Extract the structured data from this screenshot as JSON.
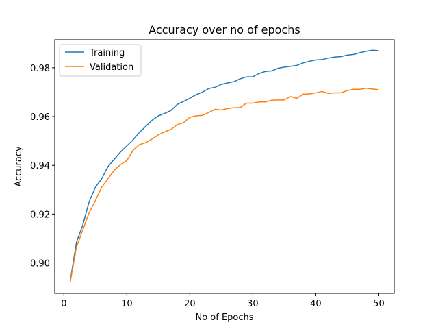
{
  "chart_data": {
    "type": "line",
    "title": "Accuracy over no of epochs",
    "xlabel": "No of Epochs",
    "ylabel": "Accuracy",
    "xlim": [
      -1.45,
      52.45
    ],
    "ylim": [
      0.8875,
      0.9915
    ],
    "xticks": [
      0,
      10,
      20,
      30,
      40,
      50
    ],
    "yticks": [
      0.9,
      0.92,
      0.94,
      0.96,
      0.98
    ],
    "ytick_labels": [
      "0.90",
      "0.92",
      "0.94",
      "0.96",
      "0.98"
    ],
    "grid": false,
    "legend_position": "top-left",
    "x": [
      1,
      2,
      3,
      4,
      5,
      6,
      7,
      8,
      9,
      10,
      11,
      12,
      13,
      14,
      15,
      16,
      17,
      18,
      19,
      20,
      21,
      22,
      23,
      24,
      25,
      26,
      27,
      28,
      29,
      30,
      31,
      32,
      33,
      34,
      35,
      36,
      37,
      38,
      39,
      40,
      41,
      42,
      43,
      44,
      45,
      46,
      47,
      48,
      49,
      50
    ],
    "series": [
      {
        "name": "Training",
        "color": "#1f77b4",
        "values": [
          0.8925,
          0.9085,
          0.9155,
          0.925,
          0.931,
          0.9345,
          0.9395,
          0.9425,
          0.9455,
          0.948,
          0.9505,
          0.9535,
          0.956,
          0.9585,
          0.9603,
          0.9613,
          0.9625,
          0.965,
          0.9662,
          0.9675,
          0.969,
          0.97,
          0.9715,
          0.972,
          0.9732,
          0.9738,
          0.9743,
          0.9755,
          0.9763,
          0.9763,
          0.9777,
          0.9785,
          0.9787,
          0.9798,
          0.9803,
          0.9806,
          0.981,
          0.982,
          0.9827,
          0.9832,
          0.9834,
          0.984,
          0.9844,
          0.9846,
          0.9852,
          0.9855,
          0.9862,
          0.9868,
          0.9872,
          0.987
        ]
      },
      {
        "name": "Validation",
        "color": "#ff7f0e",
        "values": [
          0.892,
          0.9065,
          0.9135,
          0.9205,
          0.9255,
          0.931,
          0.9345,
          0.938,
          0.9403,
          0.942,
          0.9462,
          0.9485,
          0.9493,
          0.9508,
          0.9525,
          0.9537,
          0.9547,
          0.9567,
          0.9575,
          0.9597,
          0.9603,
          0.9605,
          0.9617,
          0.963,
          0.9627,
          0.9633,
          0.9636,
          0.9637,
          0.9655,
          0.9655,
          0.966,
          0.966,
          0.9667,
          0.9668,
          0.9668,
          0.9682,
          0.9675,
          0.9692,
          0.9693,
          0.9697,
          0.9703,
          0.9695,
          0.9697,
          0.9697,
          0.9707,
          0.9712,
          0.9712,
          0.9716,
          0.9713,
          0.971
        ]
      }
    ]
  }
}
